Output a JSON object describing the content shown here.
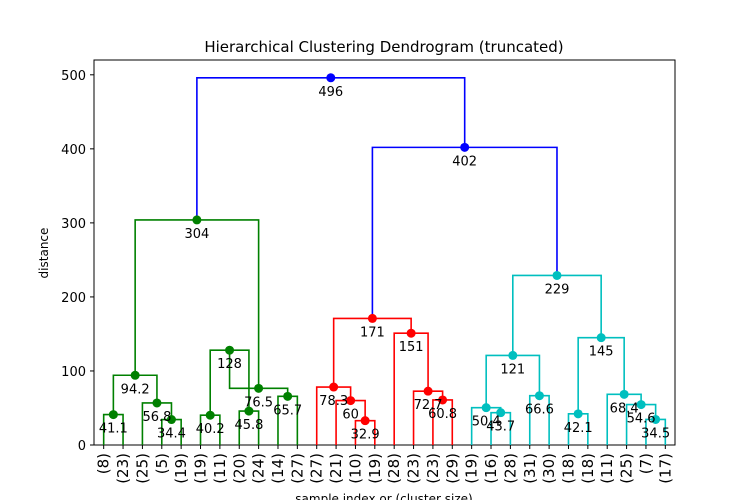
{
  "chart_data": {
    "type": "dendrogram",
    "title": "Hierarchical Clustering Dendrogram (truncated)",
    "xlabel": "sample index or (cluster size)",
    "ylabel": "distance",
    "ylim": [
      0,
      520
    ],
    "yticks": [
      0,
      100,
      200,
      300,
      400,
      500
    ],
    "grid": false,
    "leaves": [
      "(8)",
      "(23)",
      "(25)",
      "(5)",
      "(19)",
      "(19)",
      "(11)",
      "(20)",
      "(24)",
      "(14)",
      "(27)",
      "(27)",
      "(21)",
      "(10)",
      "(19)",
      "(28)",
      "(23)",
      "(23)",
      "(29)",
      "(19)",
      "(16)",
      "(28)",
      "(31)",
      "(30)",
      "(18)",
      "(18)",
      "(11)",
      "(25)",
      "(7)",
      "(17)"
    ],
    "colors": {
      "green": "#008000",
      "red": "#ff0000",
      "cyan": "#00bfbf",
      "blue": "#0000ff"
    },
    "links": [
      {
        "id": 0,
        "left": 0,
        "right": 1,
        "height": 41.1,
        "color": "green",
        "label": "41.1"
      },
      {
        "id": 1,
        "left": 3,
        "right": 4,
        "height": 34.4,
        "color": "green",
        "label": "34.4"
      },
      {
        "id": 2,
        "left": 2,
        "right": "n1",
        "height": 56.8,
        "color": "green",
        "label": "56.8"
      },
      {
        "id": 3,
        "left": "n0",
        "right": "n2",
        "height": 94.2,
        "color": "green",
        "label": "94.2"
      },
      {
        "id": 4,
        "left": 5,
        "right": 6,
        "height": 40.2,
        "color": "green",
        "label": "40.2"
      },
      {
        "id": 5,
        "left": 7,
        "right": 8,
        "height": 45.8,
        "color": "green",
        "label": "45.8"
      },
      {
        "id": 6,
        "left": "n4",
        "right": "n5",
        "height": 128,
        "color": "green",
        "label": "128"
      },
      {
        "id": 7,
        "left": 9,
        "right": 10,
        "height": 65.7,
        "color": "green",
        "label": "65.7"
      },
      {
        "id": 8,
        "left": "n6",
        "right": "n7",
        "height": 76.5,
        "color": "green",
        "label": "76.5"
      },
      {
        "id": 9,
        "left": "n3",
        "right": "n8",
        "height": 304,
        "color": "green",
        "label": "304"
      },
      {
        "id": 10,
        "left": 13,
        "right": 14,
        "height": 32.9,
        "color": "red",
        "label": "32.9"
      },
      {
        "id": 11,
        "left": 12,
        "right": "n10",
        "height": 60,
        "color": "red",
        "label": "60"
      },
      {
        "id": 12,
        "left": 11,
        "right": "n11",
        "height": 78.3,
        "color": "red",
        "label": "78.3"
      },
      {
        "id": 13,
        "left": 17,
        "right": 18,
        "height": 60.8,
        "color": "red",
        "label": "60.8"
      },
      {
        "id": 14,
        "left": 16,
        "right": "n13",
        "height": 72.7,
        "color": "red",
        "label": "72.7"
      },
      {
        "id": 15,
        "left": 15,
        "right": "n14",
        "height": 151,
        "color": "red",
        "label": "151"
      },
      {
        "id": 16,
        "left": "n12",
        "right": "n15",
        "height": 171,
        "color": "red",
        "label": "171"
      },
      {
        "id": 17,
        "left": 20,
        "right": 21,
        "height": 43.7,
        "color": "cyan",
        "label": "43.7"
      },
      {
        "id": 18,
        "left": 19,
        "right": "n17",
        "height": 50.4,
        "color": "cyan",
        "label": "50.4"
      },
      {
        "id": 19,
        "left": 22,
        "right": 23,
        "height": 66.6,
        "color": "cyan",
        "label": "66.6"
      },
      {
        "id": 20,
        "left": "n18",
        "right": "n19",
        "height": 121,
        "color": "cyan",
        "label": "121"
      },
      {
        "id": 21,
        "left": 24,
        "right": 25,
        "height": 42.1,
        "color": "cyan",
        "label": "42.1"
      },
      {
        "id": 22,
        "left": 28,
        "right": 29,
        "height": 34.5,
        "color": "cyan",
        "label": "34.5"
      },
      {
        "id": 23,
        "left": 27,
        "right": "n22",
        "height": 54.6,
        "color": "cyan",
        "label": "54.6"
      },
      {
        "id": 24,
        "left": 26,
        "right": "n23",
        "height": 68.4,
        "color": "cyan",
        "label": "68.4"
      },
      {
        "id": 25,
        "left": "n21",
        "right": "n24",
        "height": 145,
        "color": "cyan",
        "label": "145"
      },
      {
        "id": 26,
        "left": "n20",
        "right": "n25",
        "height": 229,
        "color": "cyan",
        "label": "229"
      },
      {
        "id": 27,
        "left": "n16",
        "right": "n26",
        "height": 402,
        "color": "blue",
        "label": "402"
      },
      {
        "id": 28,
        "left": "n9",
        "right": "n27",
        "height": 496,
        "color": "blue",
        "label": "496"
      }
    ]
  }
}
